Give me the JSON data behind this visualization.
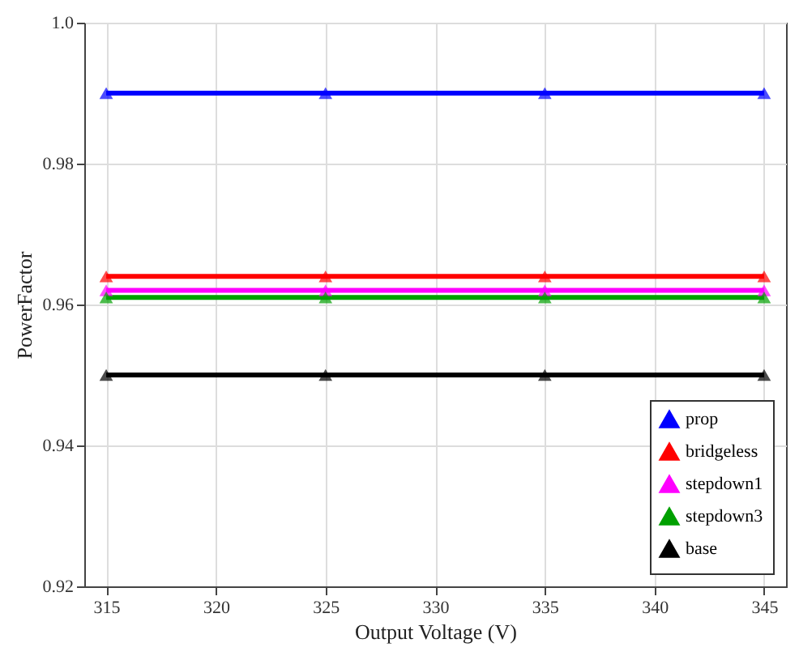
{
  "chart_data": {
    "type": "line",
    "xlabel": "Output Voltage (V)",
    "ylabel": "PowerFactor",
    "x": [
      315,
      325,
      335,
      345
    ],
    "series": [
      {
        "name": "prop",
        "color": "#0000ff",
        "values": [
          0.99,
          0.99,
          0.99,
          0.99
        ]
      },
      {
        "name": "bridgeless",
        "color": "#ff0000",
        "values": [
          0.964,
          0.964,
          0.964,
          0.964
        ]
      },
      {
        "name": "stepdown1",
        "color": "#ff00ff",
        "values": [
          0.962,
          0.962,
          0.962,
          0.962
        ]
      },
      {
        "name": "stepdown3",
        "color": "#00a000",
        "values": [
          0.961,
          0.961,
          0.961,
          0.961
        ]
      },
      {
        "name": "base",
        "color": "#000000",
        "values": [
          0.95,
          0.95,
          0.95,
          0.95
        ]
      }
    ],
    "xlim": [
      314,
      346
    ],
    "xticks": [
      315,
      320,
      325,
      330,
      335,
      340,
      345
    ],
    "ylim": [
      0.92,
      1.0
    ],
    "yticks": [
      0.92,
      0.94,
      0.96,
      0.98,
      {
        "value": 1.0,
        "label": "1.0"
      }
    ],
    "grid": true,
    "legend": "bottom right",
    "marker": "triangle",
    "line_style": "solid"
  }
}
